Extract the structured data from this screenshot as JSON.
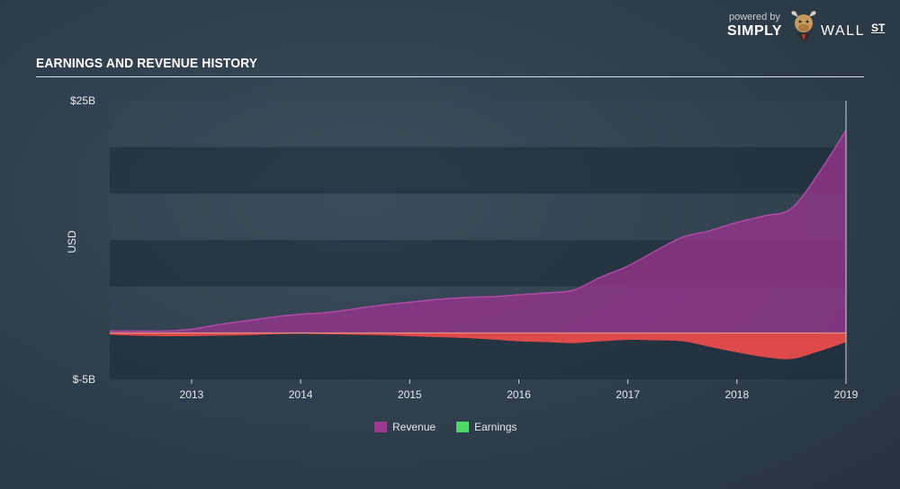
{
  "header": {
    "title": "EARNINGS AND REVENUE HISTORY",
    "brand_powered": "powered by",
    "brand_simply": "SIMPLY",
    "brand_wall": "WALL",
    "brand_st": "ST"
  },
  "chart_data": {
    "type": "area",
    "title": "EARNINGS AND REVENUE HISTORY",
    "xlabel": "",
    "ylabel": "USD",
    "ylim": [
      -5,
      25
    ],
    "y_unit": "B",
    "y_tick_labels": [
      "$25B",
      "$-5B"
    ],
    "xlim": [
      2012.25,
      2019.0
    ],
    "x_tick_labels": [
      "2013",
      "2014",
      "2015",
      "2016",
      "2017",
      "2018",
      "2019"
    ],
    "x_ticks": [
      2013,
      2014,
      2015,
      2016,
      2017,
      2018,
      2019
    ],
    "grid": "horizontal bands",
    "legend_position": "bottom-center",
    "colors": {
      "revenue": "#9c3a8f",
      "earnings": "#4cd964",
      "loss": "#e84c4c"
    },
    "series": [
      {
        "name": "Revenue",
        "x": [
          2012.25,
          2012.5,
          2012.75,
          2013.0,
          2013.25,
          2013.5,
          2013.75,
          2014.0,
          2014.25,
          2014.5,
          2014.75,
          2015.0,
          2015.25,
          2015.5,
          2015.75,
          2016.0,
          2016.25,
          2016.5,
          2016.75,
          2017.0,
          2017.25,
          2017.5,
          2017.75,
          2018.0,
          2018.25,
          2018.5,
          2018.75,
          2019.0
        ],
        "values": [
          0.2,
          0.2,
          0.2,
          0.4,
          0.9,
          1.3,
          1.7,
          2.0,
          2.2,
          2.6,
          3.0,
          3.3,
          3.6,
          3.8,
          3.9,
          4.1,
          4.3,
          4.6,
          6.0,
          7.2,
          8.8,
          10.3,
          11.0,
          11.9,
          12.6,
          13.4,
          17.2,
          21.8
        ]
      },
      {
        "name": "Earnings",
        "x": [
          2012.25,
          2012.5,
          2012.75,
          2013.0,
          2013.25,
          2013.5,
          2013.75,
          2014.0,
          2014.25,
          2014.5,
          2014.75,
          2015.0,
          2015.25,
          2015.5,
          2015.75,
          2016.0,
          2016.25,
          2016.5,
          2016.75,
          2017.0,
          2017.25,
          2017.5,
          2017.75,
          2018.0,
          2018.25,
          2018.5,
          2018.75,
          2019.0
        ],
        "values": [
          -0.2,
          -0.3,
          -0.35,
          -0.35,
          -0.3,
          -0.25,
          -0.15,
          -0.1,
          -0.15,
          -0.2,
          -0.25,
          -0.35,
          -0.45,
          -0.55,
          -0.7,
          -0.9,
          -1.0,
          -1.1,
          -0.9,
          -0.75,
          -0.8,
          -0.9,
          -1.5,
          -2.1,
          -2.6,
          -2.8,
          -2.0,
          -1.0
        ]
      }
    ]
  }
}
